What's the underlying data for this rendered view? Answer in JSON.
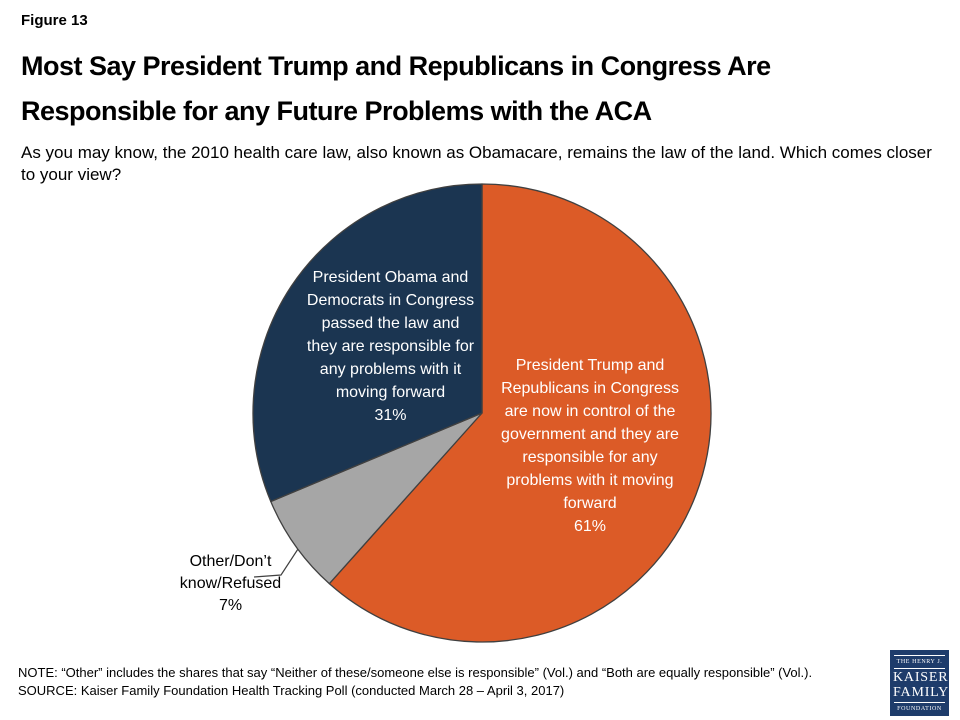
{
  "slide": {
    "figure_label": "Figure 13",
    "title": "Most Say President Trump and Republicans in Congress Are\nResponsible for any Future Problems with the ACA",
    "subtitle": "As you may know, the 2010 health care law, also known as Obamacare, remains the law of the land. Which comes closer\nto your view?",
    "note": "NOTE: “Other” includes the shares that say “Neither of these/someone else is responsible” (Vol.) and “Both are equally responsible” (Vol.).",
    "source": "SOURCE: Kaiser Family Foundation Health Tracking Poll (conducted March 28 – April 3, 2017)"
  },
  "logo": {
    "line1": "THE HENRY J.",
    "line2": "KAISER",
    "line3": "FAMILY",
    "line4": "FOUNDATION",
    "bg_color": "#1E3C6B"
  },
  "chart_data": {
    "type": "pie",
    "title": "Most Say President Trump and Republicans in Congress Are Responsible for any Future Problems with the ACA",
    "question": "As you may know, the 2010 health care law, also known as Obamacare, remains the law of the land. Which comes closer to your view?",
    "start_angle_deg": 0,
    "direction": "clockwise",
    "outline_color": "#404040",
    "slices": [
      {
        "name": "trump-republicans",
        "label": "President Trump and Republicans in Congress are now in control of the government and they are responsible for any problems with it moving forward",
        "label_lines": "President Trump and\nRepublicans in Congress\nare now in control of the\ngovernment and they are\nresponsible for any\nproblems with it moving\nforward",
        "value": 61,
        "value_label": "61%",
        "color": "#DC5B27",
        "text_color": "#FFFFFF"
      },
      {
        "name": "other-dont-know-refused",
        "label": "Other/Don’t know/Refused",
        "label_lines": "Other/Don’t\nknow/Refused",
        "value": 7,
        "value_label": "7%",
        "color": "#A6A6A6",
        "text_color": "#000000"
      },
      {
        "name": "obama-democrats",
        "label": "President Obama and Democrats in Congress passed the law and they are responsible for any problems with it moving forward",
        "label_lines": "President Obama and\nDemocrats in Congress\npassed the law and\nthey are responsible for\nany problems with it\nmoving forward",
        "value": 31,
        "value_label": "31%",
        "color": "#1B3551",
        "text_color": "#FFFFFF"
      }
    ]
  }
}
